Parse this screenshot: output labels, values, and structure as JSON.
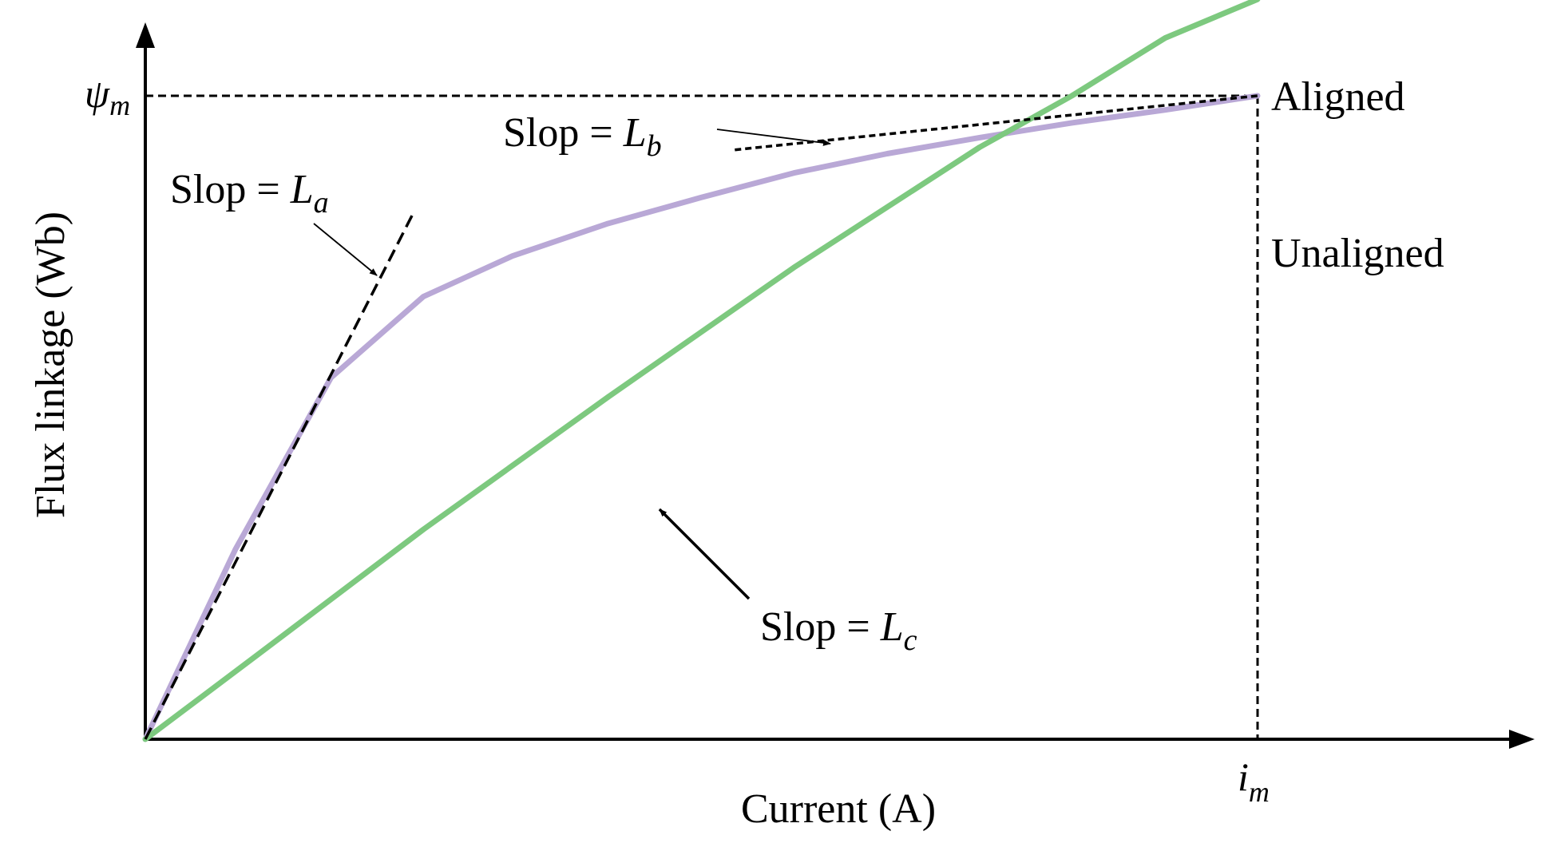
{
  "chart_data": {
    "type": "line",
    "xlabel": "Current (A)",
    "ylabel": "Flux linkage (Wb)",
    "x_marker": {
      "symbol": "i",
      "subscript": "m",
      "value": 1.0
    },
    "y_marker": {
      "symbol": "ψ",
      "subscript": "m",
      "value": 1.0
    },
    "xlim": [
      0,
      1.23
    ],
    "ylim": [
      0,
      1.12
    ],
    "grid": false,
    "legend": "none",
    "series": [
      {
        "name": "Aligned",
        "color": "#b9a8d6",
        "x": [
          0,
          0.081,
          0.167,
          0.25,
          0.33,
          0.415,
          0.5,
          0.583,
          0.667,
          0.75,
          0.833,
          0.917,
          1.0
        ],
        "y": [
          0,
          0.295,
          0.562,
          0.688,
          0.751,
          0.801,
          0.842,
          0.88,
          0.91,
          0.935,
          0.958,
          0.978,
          1.0
        ]
      },
      {
        "name": "Unaligned",
        "color": "#7dc97f",
        "x": [
          0,
          0.1,
          0.25,
          0.417,
          0.583,
          0.75,
          0.833,
          0.917,
          1.0
        ],
        "y": [
          0,
          0.13,
          0.326,
          0.533,
          0.733,
          0.92,
          1.0,
          1.09,
          1.15
        ]
      }
    ],
    "tangents": [
      {
        "label_text": "Slop = ",
        "symbol": "L",
        "subscript": "a",
        "x": [
          0,
          0.241
        ],
        "y": [
          0,
          0.818
        ]
      },
      {
        "label_text": "Slop = ",
        "symbol": "L",
        "subscript": "b",
        "x": [
          0.53,
          1.0
        ],
        "y": [
          0.916,
          1.0
        ]
      },
      {
        "label_text": "Slop = ",
        "symbol": "L",
        "subscript": "c"
      }
    ]
  }
}
